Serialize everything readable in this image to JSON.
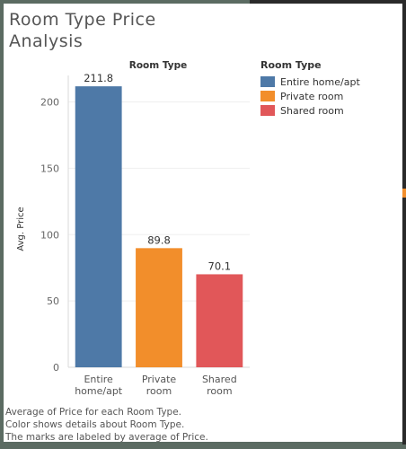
{
  "title": "Room Type Price Analysis",
  "title_lines": [
    "Room Type Price",
    "Analysis"
  ],
  "legend": {
    "title": "Room Type",
    "items": [
      {
        "label": "Entire home/apt",
        "color": "#4e79a7"
      },
      {
        "label": "Private room",
        "color": "#f28e2b"
      },
      {
        "label": "Shared room",
        "color": "#e15759"
      }
    ]
  },
  "footnote": [
    "Average of Price for each Room Type.",
    "Color shows details about Room Type.",
    "The marks are labeled by average of Price."
  ],
  "chart_data": {
    "type": "bar",
    "title": "Room Type",
    "xlabel": "",
    "ylabel": "Avg. Price",
    "categories": [
      "Entire home/apt",
      "Private room",
      "Shared room"
    ],
    "category_lines": [
      [
        "Entire",
        "home/apt"
      ],
      [
        "Private",
        "room"
      ],
      [
        "Shared",
        "room"
      ]
    ],
    "values": [
      211.8,
      89.8,
      70.1
    ],
    "value_labels": [
      "211.8",
      "89.8",
      "70.1"
    ],
    "colors": [
      "#4e79a7",
      "#f28e2b",
      "#e15759"
    ],
    "ylim": [
      0,
      220
    ],
    "yticks": [
      0,
      50,
      100,
      150,
      200
    ],
    "grid": true,
    "legend_position": "right"
  }
}
